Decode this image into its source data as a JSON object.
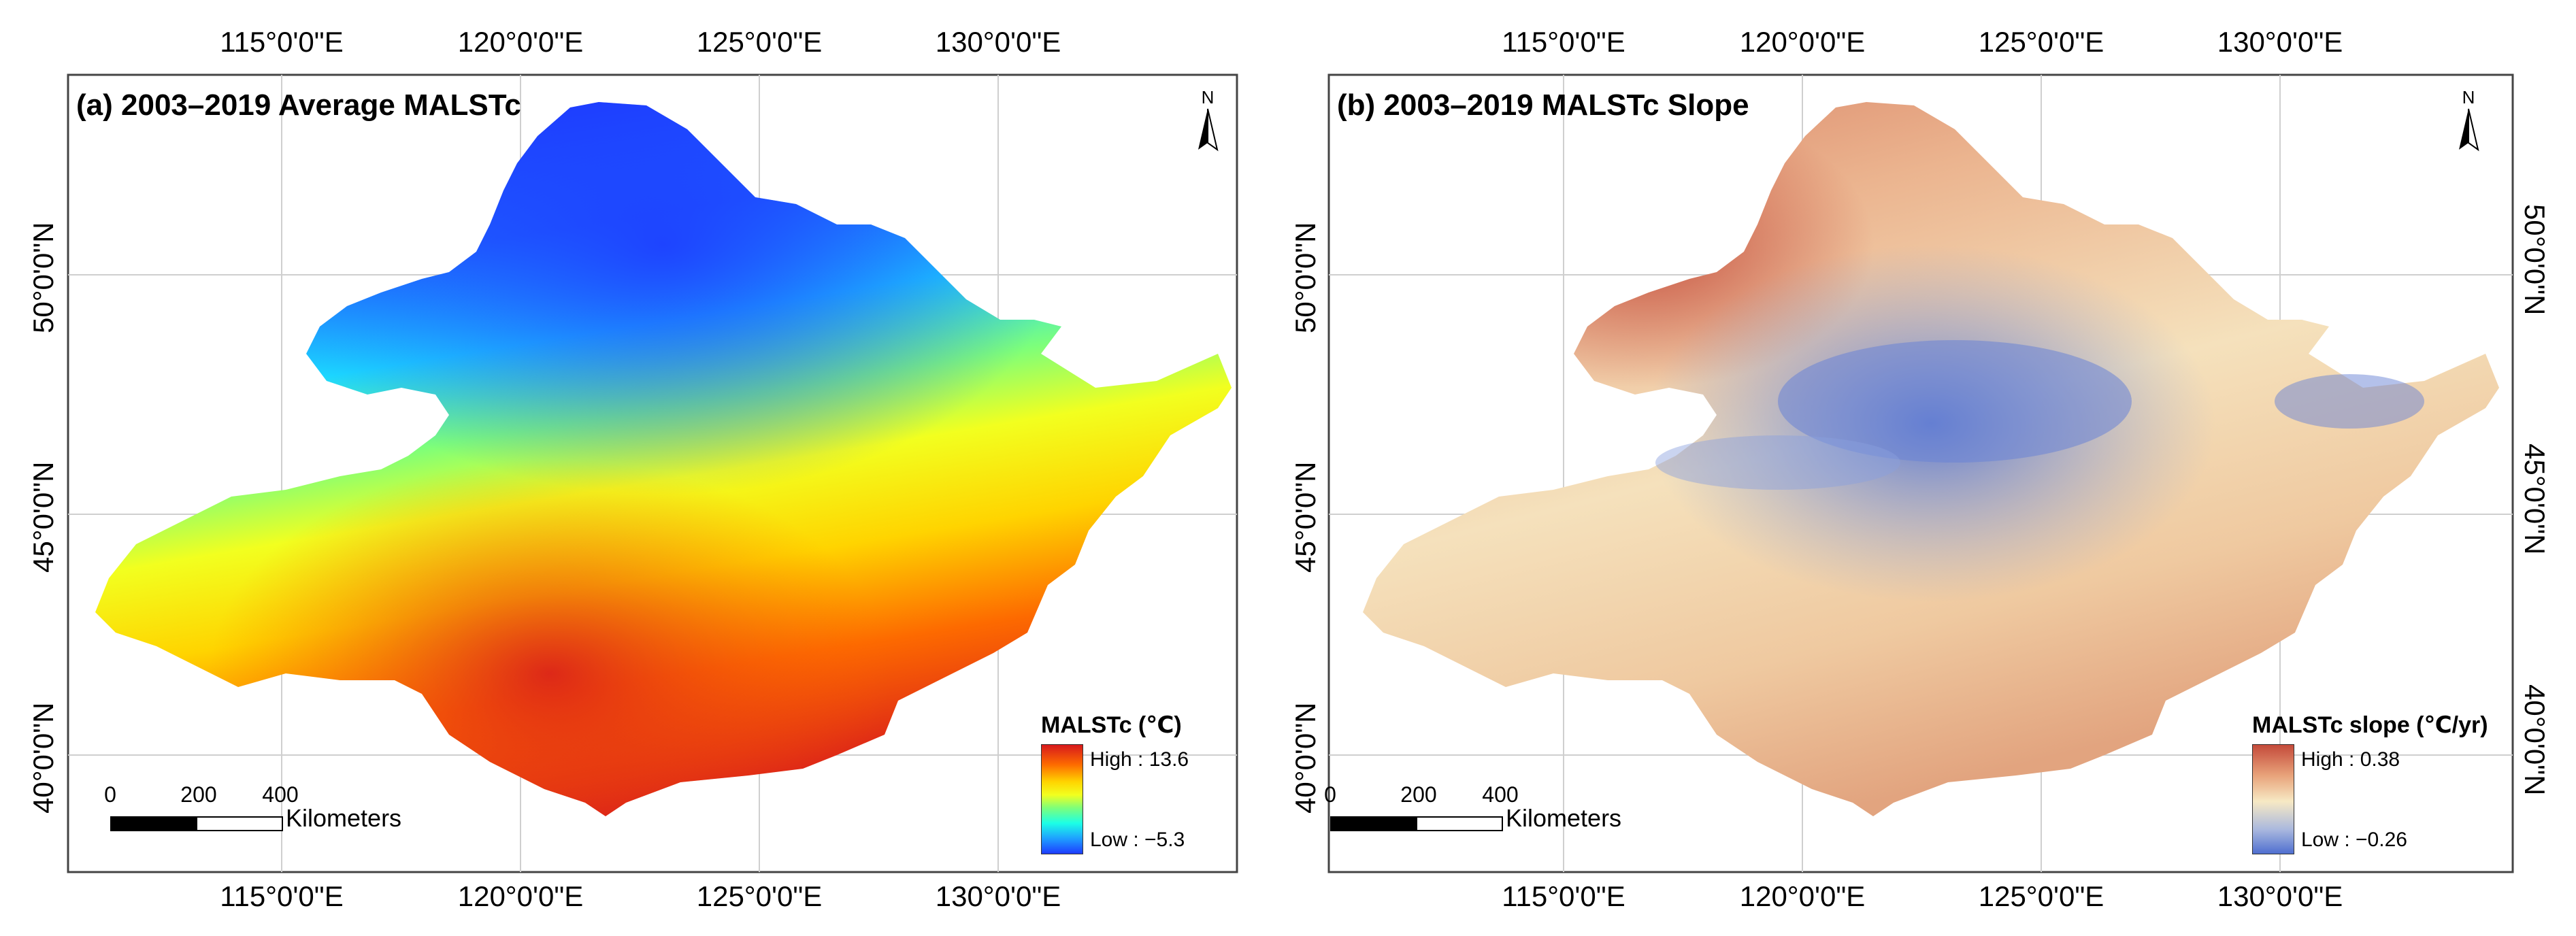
{
  "panel_a": {
    "title": "(a) 2003–2019 Average MALSTc",
    "lon_ticks_top": [
      "115°0'0\"E",
      "120°0'0\"E",
      "125°0'0\"E",
      "130°0'0\"E"
    ],
    "lon_ticks_bottom": [
      "115°0'0\"E",
      "120°0'0\"E",
      "125°0'0\"E",
      "130°0'0\"E"
    ],
    "lat_ticks_left": [
      "50°0'0\"N",
      "45°0'0\"N",
      "40°0'0\"N"
    ],
    "legend": {
      "title": "MALSTc (℃)",
      "high": "High : 13.6",
      "low": "Low : −5.3"
    },
    "scale": {
      "ticks": [
        "0",
        "200",
        "400"
      ],
      "unit": "Kilometers"
    },
    "north": "N"
  },
  "panel_b": {
    "title": "(b) 2003–2019 MALSTc Slope",
    "lon_ticks_top": [
      "115°0'0\"E",
      "120°0'0\"E",
      "125°0'0\"E",
      "130°0'0\"E"
    ],
    "lon_ticks_bottom": [
      "115°0'0\"E",
      "120°0'0\"E",
      "125°0'0\"E",
      "130°0'0\"E"
    ],
    "lat_ticks_left": [
      "50°0'0\"N",
      "45°0'0\"N",
      "40°0'0\"N"
    ],
    "lat_ticks_right": [
      "50°0'0\"N",
      "45°0'0\"N",
      "40°0'0\"N"
    ],
    "legend": {
      "title": "MALSTc slope (℃/yr)",
      "high": "High : 0.38",
      "low": "Low : −0.26"
    },
    "scale": {
      "ticks": [
        "0",
        "200",
        "400"
      ],
      "unit": "Kilometers"
    },
    "north": "N"
  },
  "colors": {
    "temp_ramp": [
      "#d7191c",
      "#fd6a00",
      "#ffd400",
      "#f2ff1f",
      "#7dff7a",
      "#1cffe6",
      "#1ea0ff",
      "#1e3cff"
    ],
    "slope_ramp": [
      "#c44a3a",
      "#e8a27a",
      "#f7e9c4",
      "#a9b8de",
      "#4f6fd0"
    ]
  }
}
